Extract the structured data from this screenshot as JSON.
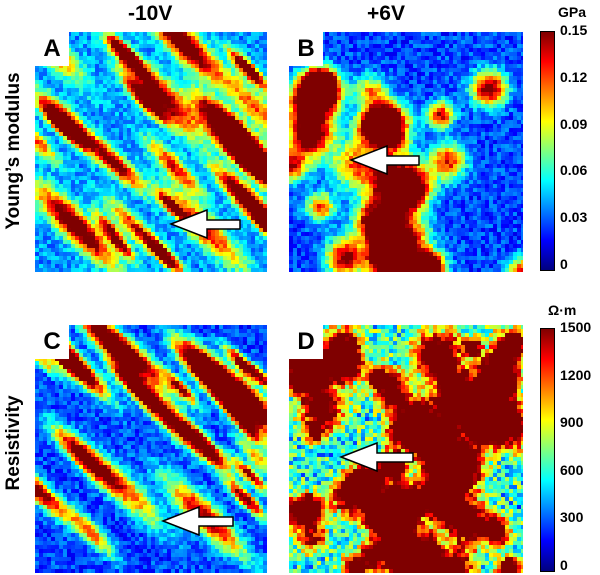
{
  "columns": [
    "-10V",
    "+6V"
  ],
  "rows": [
    "Young’s modulus",
    "Resistivity"
  ],
  "panels": [
    {
      "label": "A",
      "seed": 11,
      "style": "streak",
      "base": 0.18
    },
    {
      "label": "B",
      "seed": 27,
      "style": "blob",
      "base": 0.1
    },
    {
      "label": "C",
      "seed": 43,
      "style": "streak",
      "base": 0.1
    },
    {
      "label": "D",
      "seed": 59,
      "style": "fine",
      "base": 0.3
    }
  ],
  "colorbars": [
    {
      "unit": "GPa",
      "ticks": [
        "0.15",
        "0.12",
        "0.09",
        "0.06",
        "0.03",
        "0"
      ]
    },
    {
      "unit": "Ω·m",
      "ticks": [
        "1500",
        "1200",
        "900",
        "600",
        "300",
        "0"
      ]
    }
  ],
  "colors": {
    "jet": [
      "#00007f",
      "#0000ff",
      "#007fff",
      "#00ffff",
      "#7fff7f",
      "#ffff00",
      "#ff7f00",
      "#ff0000",
      "#7f0000"
    ],
    "arrow_fill": "#ffffff",
    "arrow_stroke": "#000000"
  },
  "icons": [
    "arrow-icon"
  ]
}
